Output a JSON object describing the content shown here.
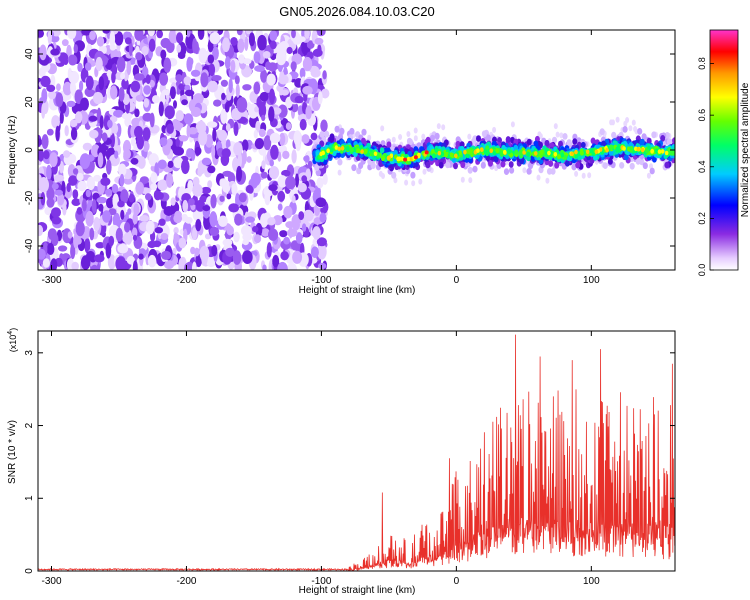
{
  "title": "GN05.2026.084.10.03.C20",
  "chart_data": [
    {
      "type": "heatmap",
      "xlabel": "Height of straight line (km)",
      "ylabel": "Frequency (Hz)",
      "xlim": [
        -310,
        162
      ],
      "ylim": [
        -50,
        50
      ],
      "x_ticks": [
        -300,
        -200,
        -100,
        0,
        100
      ],
      "x_tick_labels": [
        "-300",
        "-200",
        "-100",
        "0",
        "100"
      ],
      "y_ticks": [
        -40,
        -20,
        0,
        20,
        40
      ],
      "y_tick_labels": [
        "-40",
        "-20",
        "0",
        "20",
        "40"
      ],
      "noise_region_x": [
        -310,
        -100
      ],
      "ridge": {
        "x": [
          -105,
          -90,
          -70,
          -50,
          -35,
          -20,
          0,
          20,
          40,
          60,
          80,
          100,
          120,
          140,
          162
        ],
        "freq": [
          -3,
          1,
          0,
          -3,
          -4,
          -1,
          -2,
          0,
          -1,
          -1,
          -2,
          -1,
          1,
          0,
          -1
        ]
      },
      "colorbar": {
        "label": "Normalized spectral amplitude",
        "range": [
          0,
          0.93
        ],
        "ticks": [
          0.0,
          0.2,
          0.4,
          0.6,
          0.8
        ],
        "tick_labels": [
          "0.0",
          "0.2",
          "0.4",
          "0.6",
          "0.8"
        ]
      }
    },
    {
      "type": "line",
      "xlabel": "Height of straight line (km)",
      "ylabel": "SNR (10 * v/v)",
      "multiplier": "(x10",
      "multiplier_exp": "4",
      "multiplier_close": ")",
      "color": "#e8302a",
      "xlim": [
        -310,
        162
      ],
      "ylim": [
        0,
        3.3
      ],
      "x_ticks": [
        -300,
        -200,
        -100,
        0,
        100
      ],
      "x_tick_labels": [
        "-300",
        "-200",
        "-100",
        "0",
        "100"
      ],
      "y_ticks": [
        0,
        1,
        2,
        3
      ],
      "y_tick_labels": [
        "0",
        "1",
        "2",
        "3"
      ],
      "envelope": {
        "x": [
          -310,
          -100,
          -80,
          -65,
          -55,
          -45,
          -35,
          -25,
          -10,
          0,
          20,
          40,
          60,
          80,
          100,
          120,
          140,
          162
        ],
        "low": [
          0,
          0,
          0,
          0.05,
          0.08,
          0.06,
          0.05,
          0.1,
          0.15,
          0.2,
          0.3,
          0.45,
          0.45,
          0.4,
          0.4,
          0.35,
          0.3,
          0.3
        ],
        "high": [
          0.03,
          0.03,
          0.05,
          0.25,
          0.45,
          0.6,
          0.4,
          0.7,
          0.9,
          1.4,
          2.0,
          2.4,
          2.6,
          2.6,
          2.4,
          2.5,
          2.5,
          2.3
        ]
      },
      "spikes": [
        {
          "x": 44,
          "y": 3.25
        },
        {
          "x": -55,
          "y": 1.08
        },
        {
          "x": 107,
          "y": 3.05
        },
        {
          "x": 86,
          "y": 2.9
        },
        {
          "x": 62,
          "y": 2.95
        },
        {
          "x": 160,
          "y": 2.85
        },
        {
          "x": -5,
          "y": 1.55
        }
      ]
    }
  ]
}
